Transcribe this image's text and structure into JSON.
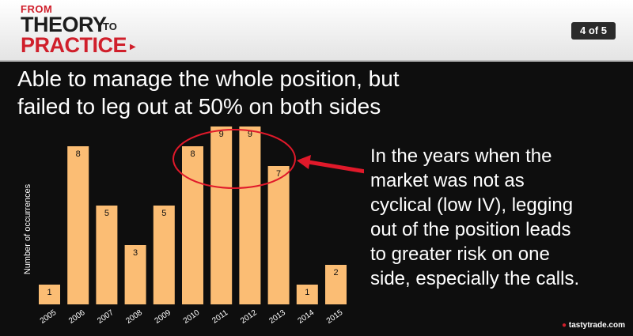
{
  "header": {
    "logo_from": "FROM",
    "logo_theory": "THEORY",
    "logo_to": "TO",
    "logo_practice": "PRACTICE",
    "page_indicator": "4 of 5"
  },
  "slide": {
    "title_line1": "Able to manage the whole position, but",
    "title_line2": "failed to leg out at 50% on both sides",
    "body_lines": [
      "In the years when the",
      "market was not as",
      "cyclical (low IV), legging",
      "out of the position leads",
      "to greater risk on one",
      "side, especially the calls."
    ]
  },
  "watermark": "tastytrade.com",
  "colors": {
    "bar": "#fbbd74",
    "annotation": "#e0192a",
    "background": "#0e0e0e"
  },
  "chart_data": {
    "type": "bar",
    "categories": [
      "2005",
      "2006",
      "2007",
      "2008",
      "2009",
      "2010",
      "2011",
      "2012",
      "2013",
      "2014",
      "2015"
    ],
    "values": [
      1,
      8,
      5,
      3,
      5,
      8,
      9,
      9,
      7,
      1,
      2
    ],
    "title": "",
    "xlabel": "",
    "ylabel": "Number of occurrences",
    "ylim": [
      0,
      9
    ],
    "grid": false,
    "legend": "none"
  }
}
